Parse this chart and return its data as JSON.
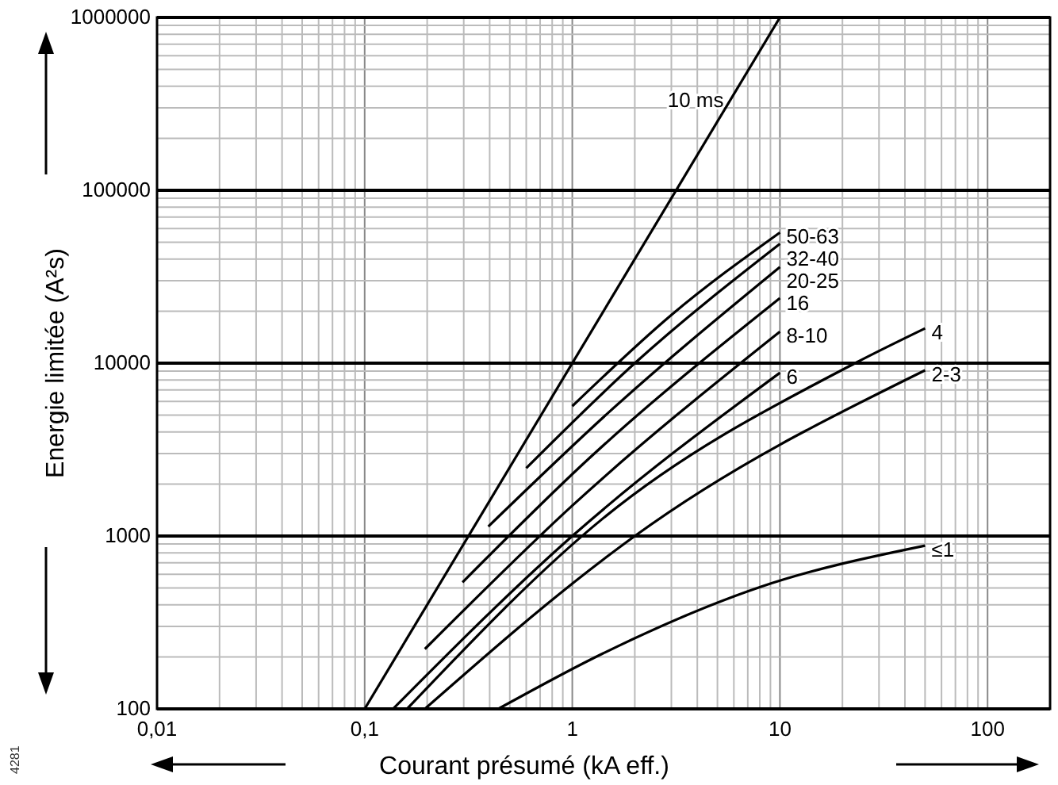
{
  "chart_data": {
    "type": "line",
    "xlabel": "Courant présumé (kA eff.)",
    "ylabel": "Energie limitée (A²s)",
    "log": "xy",
    "grid": true,
    "marker": "none",
    "line_style": "solid",
    "xlim": [
      0.01,
      200
    ],
    "xticks": [
      {
        "value": 0.01,
        "label": "0,01"
      },
      {
        "value": 0.1,
        "label": "0,1"
      },
      1,
      10,
      100
    ],
    "ylim": [
      100,
      1000000
    ],
    "yticks": [
      100,
      1000,
      10000,
      100000,
      1000000
    ],
    "annotations": [
      "4281"
    ],
    "series": [
      {
        "name": "10 ms",
        "color": "#000000",
        "x": [
          0.1,
          10
        ],
        "values": [
          100,
          1000000
        ]
      },
      {
        "name": "50-63",
        "color": "#000000",
        "x": [
          1,
          3,
          10
        ],
        "values": [
          5640,
          19000,
          57000
        ]
      },
      {
        "name": "32-40",
        "color": "#000000",
        "x": [
          0.6,
          2,
          10
        ],
        "values": [
          2470,
          10000,
          49000
        ]
      },
      {
        "name": "20-25",
        "color": "#000000",
        "x": [
          0.394,
          1.5,
          10
        ],
        "values": [
          1135,
          5200,
          36000
        ]
      },
      {
        "name": "16",
        "color": "#000000",
        "x": [
          0.296,
          1.2,
          10
        ],
        "values": [
          540,
          2800,
          23800
        ]
      },
      {
        "name": "8-10",
        "color": "#000000",
        "x": [
          0.195,
          1,
          10
        ],
        "values": [
          222,
          1500,
          15200
        ]
      },
      {
        "name": "6",
        "color": "#000000",
        "x": [
          0.137,
          1,
          10
        ],
        "values": [
          100,
          1000,
          8800
        ]
      },
      {
        "name": "4",
        "color": "#000000",
        "x": [
          0.16,
          1.4,
          23,
          50
        ],
        "values": [
          100,
          1260,
          10000,
          15900
        ]
      },
      {
        "name": "2-3",
        "color": "#000000",
        "x": [
          0.195,
          1.4,
          2,
          50
        ],
        "values": [
          100,
          727,
          1000,
          9100
        ]
      },
      {
        "name": "≤1",
        "color": "#000000",
        "x": [
          0.44,
          1.4,
          8.1,
          50
        ],
        "values": [
          100,
          209,
          509,
          880
        ]
      }
    ]
  }
}
